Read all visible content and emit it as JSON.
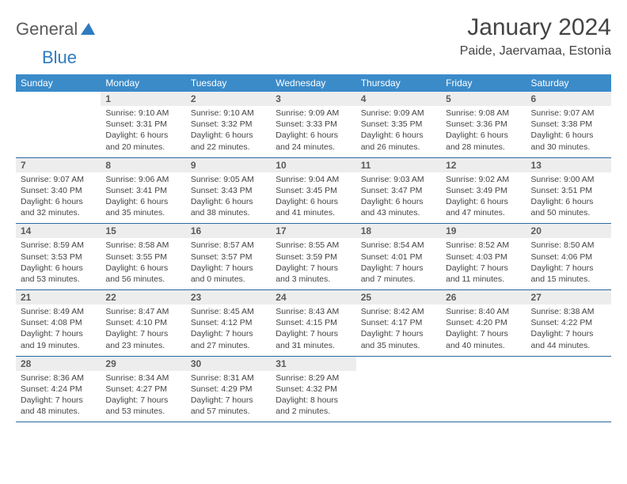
{
  "logo": {
    "part1": "General",
    "part2": "Blue"
  },
  "header": {
    "title": "January 2024",
    "location": "Paide, Jaervamaa, Estonia"
  },
  "colors": {
    "header_bg": "#3b8bc9",
    "header_fg": "#ffffff",
    "daynum_bg": "#ededed",
    "border": "#2a6aa0",
    "text": "#444444"
  },
  "weekdays": [
    "Sunday",
    "Monday",
    "Tuesday",
    "Wednesday",
    "Thursday",
    "Friday",
    "Saturday"
  ],
  "weeks": [
    [
      null,
      {
        "n": "1",
        "sr": "Sunrise: 9:10 AM",
        "ss": "Sunset: 3:31 PM",
        "dl": "Daylight: 6 hours and 20 minutes."
      },
      {
        "n": "2",
        "sr": "Sunrise: 9:10 AM",
        "ss": "Sunset: 3:32 PM",
        "dl": "Daylight: 6 hours and 22 minutes."
      },
      {
        "n": "3",
        "sr": "Sunrise: 9:09 AM",
        "ss": "Sunset: 3:33 PM",
        "dl": "Daylight: 6 hours and 24 minutes."
      },
      {
        "n": "4",
        "sr": "Sunrise: 9:09 AM",
        "ss": "Sunset: 3:35 PM",
        "dl": "Daylight: 6 hours and 26 minutes."
      },
      {
        "n": "5",
        "sr": "Sunrise: 9:08 AM",
        "ss": "Sunset: 3:36 PM",
        "dl": "Daylight: 6 hours and 28 minutes."
      },
      {
        "n": "6",
        "sr": "Sunrise: 9:07 AM",
        "ss": "Sunset: 3:38 PM",
        "dl": "Daylight: 6 hours and 30 minutes."
      }
    ],
    [
      {
        "n": "7",
        "sr": "Sunrise: 9:07 AM",
        "ss": "Sunset: 3:40 PM",
        "dl": "Daylight: 6 hours and 32 minutes."
      },
      {
        "n": "8",
        "sr": "Sunrise: 9:06 AM",
        "ss": "Sunset: 3:41 PM",
        "dl": "Daylight: 6 hours and 35 minutes."
      },
      {
        "n": "9",
        "sr": "Sunrise: 9:05 AM",
        "ss": "Sunset: 3:43 PM",
        "dl": "Daylight: 6 hours and 38 minutes."
      },
      {
        "n": "10",
        "sr": "Sunrise: 9:04 AM",
        "ss": "Sunset: 3:45 PM",
        "dl": "Daylight: 6 hours and 41 minutes."
      },
      {
        "n": "11",
        "sr": "Sunrise: 9:03 AM",
        "ss": "Sunset: 3:47 PM",
        "dl": "Daylight: 6 hours and 43 minutes."
      },
      {
        "n": "12",
        "sr": "Sunrise: 9:02 AM",
        "ss": "Sunset: 3:49 PM",
        "dl": "Daylight: 6 hours and 47 minutes."
      },
      {
        "n": "13",
        "sr": "Sunrise: 9:00 AM",
        "ss": "Sunset: 3:51 PM",
        "dl": "Daylight: 6 hours and 50 minutes."
      }
    ],
    [
      {
        "n": "14",
        "sr": "Sunrise: 8:59 AM",
        "ss": "Sunset: 3:53 PM",
        "dl": "Daylight: 6 hours and 53 minutes."
      },
      {
        "n": "15",
        "sr": "Sunrise: 8:58 AM",
        "ss": "Sunset: 3:55 PM",
        "dl": "Daylight: 6 hours and 56 minutes."
      },
      {
        "n": "16",
        "sr": "Sunrise: 8:57 AM",
        "ss": "Sunset: 3:57 PM",
        "dl": "Daylight: 7 hours and 0 minutes."
      },
      {
        "n": "17",
        "sr": "Sunrise: 8:55 AM",
        "ss": "Sunset: 3:59 PM",
        "dl": "Daylight: 7 hours and 3 minutes."
      },
      {
        "n": "18",
        "sr": "Sunrise: 8:54 AM",
        "ss": "Sunset: 4:01 PM",
        "dl": "Daylight: 7 hours and 7 minutes."
      },
      {
        "n": "19",
        "sr": "Sunrise: 8:52 AM",
        "ss": "Sunset: 4:03 PM",
        "dl": "Daylight: 7 hours and 11 minutes."
      },
      {
        "n": "20",
        "sr": "Sunrise: 8:50 AM",
        "ss": "Sunset: 4:06 PM",
        "dl": "Daylight: 7 hours and 15 minutes."
      }
    ],
    [
      {
        "n": "21",
        "sr": "Sunrise: 8:49 AM",
        "ss": "Sunset: 4:08 PM",
        "dl": "Daylight: 7 hours and 19 minutes."
      },
      {
        "n": "22",
        "sr": "Sunrise: 8:47 AM",
        "ss": "Sunset: 4:10 PM",
        "dl": "Daylight: 7 hours and 23 minutes."
      },
      {
        "n": "23",
        "sr": "Sunrise: 8:45 AM",
        "ss": "Sunset: 4:12 PM",
        "dl": "Daylight: 7 hours and 27 minutes."
      },
      {
        "n": "24",
        "sr": "Sunrise: 8:43 AM",
        "ss": "Sunset: 4:15 PM",
        "dl": "Daylight: 7 hours and 31 minutes."
      },
      {
        "n": "25",
        "sr": "Sunrise: 8:42 AM",
        "ss": "Sunset: 4:17 PM",
        "dl": "Daylight: 7 hours and 35 minutes."
      },
      {
        "n": "26",
        "sr": "Sunrise: 8:40 AM",
        "ss": "Sunset: 4:20 PM",
        "dl": "Daylight: 7 hours and 40 minutes."
      },
      {
        "n": "27",
        "sr": "Sunrise: 8:38 AM",
        "ss": "Sunset: 4:22 PM",
        "dl": "Daylight: 7 hours and 44 minutes."
      }
    ],
    [
      {
        "n": "28",
        "sr": "Sunrise: 8:36 AM",
        "ss": "Sunset: 4:24 PM",
        "dl": "Daylight: 7 hours and 48 minutes."
      },
      {
        "n": "29",
        "sr": "Sunrise: 8:34 AM",
        "ss": "Sunset: 4:27 PM",
        "dl": "Daylight: 7 hours and 53 minutes."
      },
      {
        "n": "30",
        "sr": "Sunrise: 8:31 AM",
        "ss": "Sunset: 4:29 PM",
        "dl": "Daylight: 7 hours and 57 minutes."
      },
      {
        "n": "31",
        "sr": "Sunrise: 8:29 AM",
        "ss": "Sunset: 4:32 PM",
        "dl": "Daylight: 8 hours and 2 minutes."
      },
      null,
      null,
      null
    ]
  ]
}
